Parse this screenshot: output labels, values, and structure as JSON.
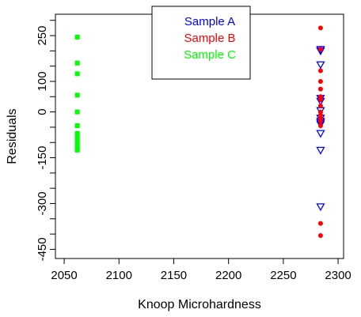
{
  "chart_data": {
    "type": "scatter",
    "title": "",
    "xlabel": "Knoop Microhardness",
    "ylabel": "Residuals",
    "xlim": [
      2042,
      2305
    ],
    "ylim": [
      -480,
      320
    ],
    "x_ticks": [
      2050,
      2100,
      2150,
      2200,
      2250,
      2300
    ],
    "x_tick_labels": [
      "2050",
      "2100",
      "2150",
      "2200",
      "2250",
      "2300"
    ],
    "y_ticks": [
      -450,
      -400,
      -350,
      -300,
      -250,
      -200,
      -150,
      -100,
      -50,
      0,
      50,
      100,
      150,
      200,
      250,
      300
    ],
    "y_tick_labels": [
      "-450",
      "",
      "",
      "-300",
      "",
      "",
      "-150",
      "",
      "",
      "0",
      "",
      "100",
      "",
      "",
      "250",
      ""
    ],
    "grid": false,
    "legend_position": "top-center",
    "series": [
      {
        "name": "Sample A",
        "color": "#0000ff",
        "marker": "triangle-down-open",
        "x": [
          2284,
          2284,
          2284,
          2284,
          2284,
          2284,
          2284,
          2284,
          2284,
          2284,
          2284,
          2284,
          2284
        ],
        "y": [
          205,
          200,
          155,
          45,
          35,
          5,
          -20,
          -30,
          -35,
          -40,
          -70,
          -125,
          -310
        ]
      },
      {
        "name": "Sample B",
        "color": "#ff0000",
        "marker": "circle",
        "x": [
          2284,
          2284,
          2284,
          2284,
          2284,
          2284,
          2284,
          2284,
          2284,
          2284,
          2284,
          2284,
          2284,
          2284,
          2284
        ],
        "y": [
          275,
          205,
          135,
          100,
          75,
          50,
          40,
          20,
          0,
          -10,
          -20,
          -30,
          -45,
          -365,
          -405
        ]
      },
      {
        "name": "Sample C",
        "color": "#00ff00",
        "marker": "square",
        "x": [
          2062,
          2062,
          2062,
          2062,
          2062,
          2062,
          2062,
          2062,
          2062,
          2062,
          2062,
          2062,
          2062,
          2062
        ],
        "y": [
          245,
          160,
          125,
          55,
          0,
          -45,
          -70,
          -80,
          -90,
          -100,
          -110,
          -115,
          -120,
          -125
        ]
      }
    ]
  }
}
